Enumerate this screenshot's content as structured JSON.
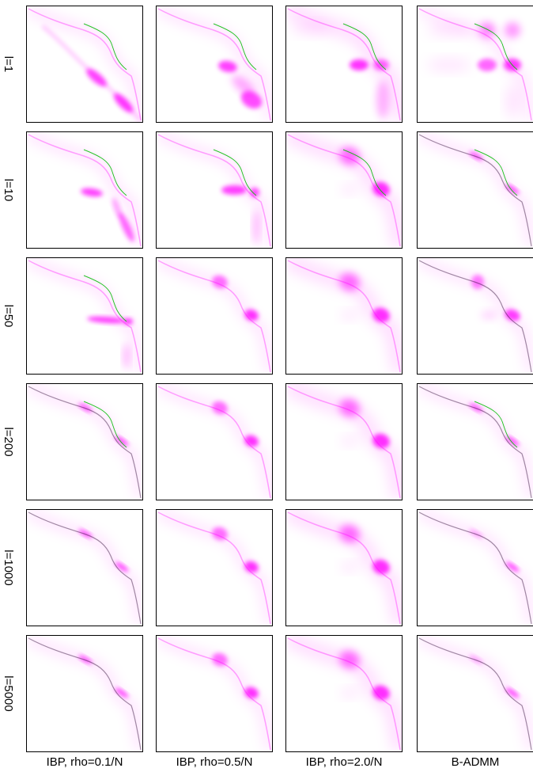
{
  "rows": [
    {
      "label": "l=1"
    },
    {
      "label": "l=10"
    },
    {
      "label": "l=50"
    },
    {
      "label": "l=200"
    },
    {
      "label": "l=1000"
    },
    {
      "label": "l=5000"
    }
  ],
  "columns": [
    {
      "label": "IBP, rho=0.1/N"
    },
    {
      "label": "IBP, rho=0.5/N"
    },
    {
      "label": "IBP, rho=2.0/N"
    },
    {
      "label": "B-ADMM"
    }
  ],
  "colors": {
    "magenta": "#ff00ff",
    "green": "#00bb00",
    "dark": "#2a0830",
    "frame": "#000000"
  }
}
